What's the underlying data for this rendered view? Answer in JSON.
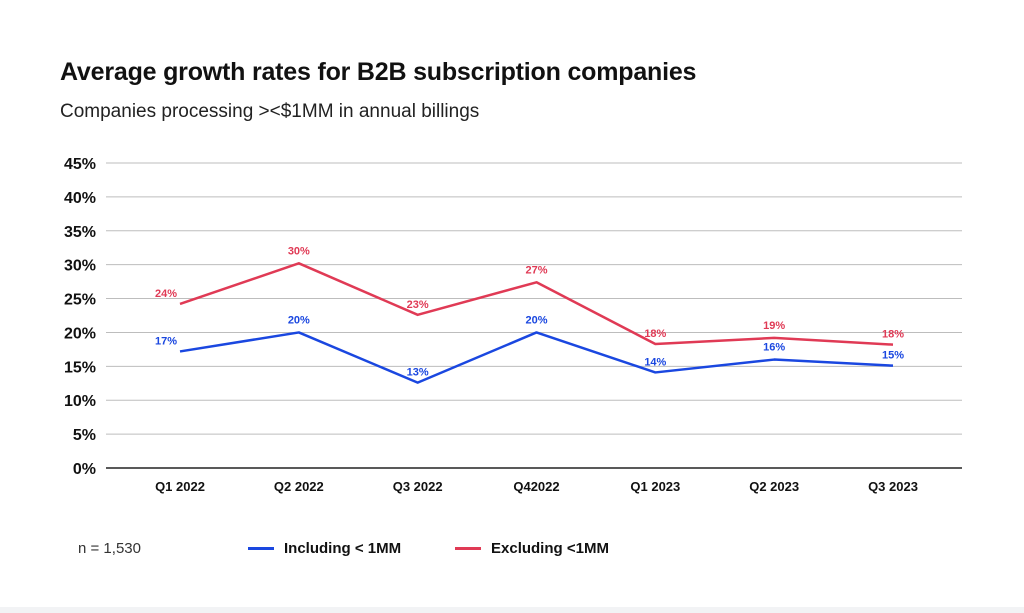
{
  "header": {
    "title": "Average growth rates for B2B subscription companies",
    "subtitle": "Companies processing ><$1MM in annual billings"
  },
  "footer": {
    "sample_size": "n = 1,530"
  },
  "colors": {
    "including": "#1a47e0",
    "excluding": "#e03a55",
    "grid": "#bdbdbd",
    "axis": "#222222"
  },
  "chart_data": {
    "type": "line",
    "title": "Average growth rates for B2B subscription companies",
    "subtitle": "Companies processing ><$1MM in annual billings",
    "xlabel": "",
    "ylabel": "",
    "categories": [
      "Q1 2022",
      "Q2 2022",
      "Q3 2022",
      "Q42022",
      "Q1 2023",
      "Q2 2023",
      "Q3 2023"
    ],
    "ylim": [
      0,
      45
    ],
    "yticks": [
      0,
      5,
      10,
      15,
      20,
      25,
      30,
      35,
      40,
      45
    ],
    "ytick_labels": [
      "0%",
      "5%",
      "10%",
      "15%",
      "20%",
      "25%",
      "30%",
      "35%",
      "40%",
      "45%"
    ],
    "grid": true,
    "legend_position": "bottom",
    "series": [
      {
        "name": "Including < 1MM",
        "color_key": "including",
        "values": [
          17.2,
          20.0,
          12.6,
          20.0,
          14.1,
          16.0,
          15.1
        ],
        "labels": [
          "17%",
          "20%",
          "13%",
          "20%",
          "14%",
          "16%",
          "15%"
        ]
      },
      {
        "name": "Excluding <1MM",
        "color_key": "excluding",
        "values": [
          24.2,
          30.2,
          22.6,
          27.4,
          18.3,
          19.2,
          18.2
        ],
        "labels": [
          "24%",
          "30%",
          "23%",
          "27%",
          "18%",
          "19%",
          "18%"
        ]
      }
    ]
  }
}
